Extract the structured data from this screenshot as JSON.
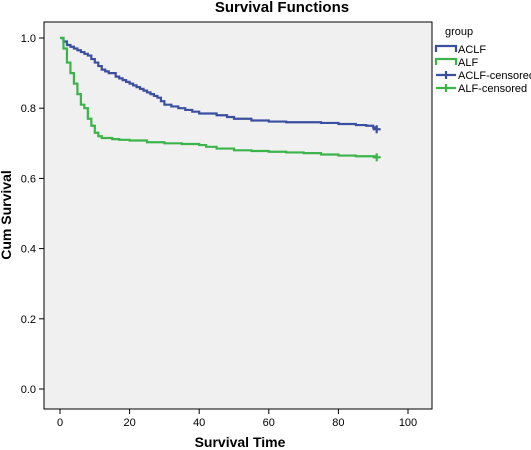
{
  "chart_data": {
    "type": "line",
    "step": true,
    "title": "Survival Functions",
    "xlabel": "Survival Time",
    "ylabel": "Cum Survival",
    "xlim": [
      0,
      100
    ],
    "ylim": [
      0.0,
      1.0
    ],
    "xticks": [
      "0",
      "20",
      "40",
      "60",
      "80",
      "100"
    ],
    "yticks": [
      "0.0",
      "0.2",
      "0.4",
      "0.6",
      "0.8",
      "1.0"
    ],
    "legend": {
      "title": "group",
      "placement": "right",
      "entries": [
        "ACLF",
        "ALF",
        "ACLF-censored",
        "ALF-censored"
      ]
    },
    "colors": {
      "ACLF": "#3b4fa0",
      "ALF": "#3cb44a"
    },
    "series": [
      {
        "name": "ACLF",
        "color": "#3b4fa0",
        "x": [
          0,
          1,
          2,
          3,
          4,
          5,
          6,
          7,
          8,
          9,
          10,
          11,
          12,
          13,
          14,
          16,
          17,
          18,
          19,
          20,
          21,
          22,
          23,
          24,
          25,
          26,
          27,
          28,
          29,
          30,
          32,
          34,
          36,
          38,
          40,
          45,
          48,
          50,
          55,
          60,
          65,
          70,
          75,
          80,
          85,
          88,
          90,
          91
        ],
        "y": [
          1.0,
          0.99,
          0.98,
          0.975,
          0.97,
          0.965,
          0.96,
          0.955,
          0.95,
          0.94,
          0.93,
          0.92,
          0.91,
          0.905,
          0.9,
          0.89,
          0.885,
          0.88,
          0.875,
          0.87,
          0.865,
          0.86,
          0.855,
          0.85,
          0.845,
          0.84,
          0.835,
          0.83,
          0.82,
          0.81,
          0.805,
          0.8,
          0.795,
          0.79,
          0.785,
          0.78,
          0.775,
          0.77,
          0.765,
          0.762,
          0.76,
          0.76,
          0.758,
          0.755,
          0.752,
          0.75,
          0.745,
          0.74
        ]
      },
      {
        "name": "ALF",
        "color": "#3cb44a",
        "x": [
          0,
          1,
          2,
          3,
          4,
          5,
          6,
          7,
          8,
          9,
          10,
          11,
          12,
          13,
          15,
          17,
          20,
          25,
          30,
          35,
          40,
          42,
          45,
          50,
          55,
          60,
          65,
          70,
          75,
          80,
          85,
          91
        ],
        "y": [
          1.0,
          0.97,
          0.93,
          0.9,
          0.87,
          0.84,
          0.81,
          0.8,
          0.77,
          0.75,
          0.73,
          0.72,
          0.715,
          0.715,
          0.712,
          0.71,
          0.708,
          0.703,
          0.7,
          0.698,
          0.695,
          0.69,
          0.685,
          0.68,
          0.678,
          0.676,
          0.674,
          0.672,
          0.668,
          0.665,
          0.663,
          0.66
        ]
      }
    ],
    "censored": [
      {
        "name": "ACLF-censored",
        "x": 91,
        "y": 0.74
      },
      {
        "name": "ALF-censored",
        "x": 91,
        "y": 0.66
      }
    ]
  }
}
